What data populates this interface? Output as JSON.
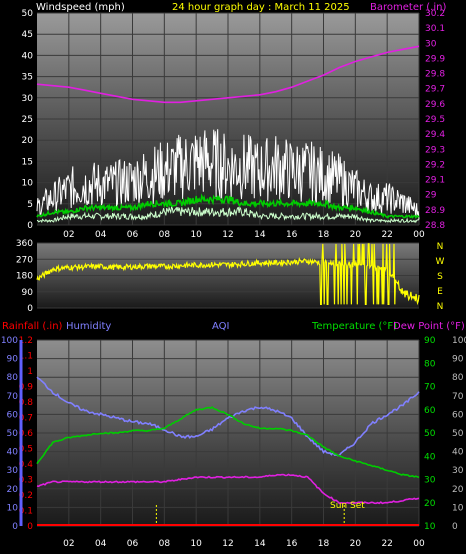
{
  "header": {
    "left_title": "Windspeed (mph)",
    "center_title": "24 hour graph day : March 11 2025",
    "right_title": "Barometer (.in)"
  },
  "colors": {
    "wind_gust": "#ffffff",
    "wind_avg": "#00cc00",
    "wind_low": "#ccffcc",
    "barometer": "#e020e0",
    "wind_dir": "#ffff00",
    "humidity": "#8080ff",
    "temperature": "#00cc00",
    "dewpoint": "#e020e0",
    "rainfall": "#ff0000",
    "aqi": "#8080ff",
    "compass": "#ffff00",
    "sunset": "#ffff00"
  },
  "chart_data": [
    {
      "type": "line",
      "x_ticks": [
        "02",
        "04",
        "06",
        "08",
        "10",
        "12",
        "14",
        "16",
        "18",
        "20",
        "22",
        "00"
      ],
      "y_left_label": "Windspeed (mph)",
      "y_left_ticks": [
        0,
        5,
        10,
        15,
        20,
        25,
        30,
        35,
        40,
        45,
        50
      ],
      "y_left_range": [
        0,
        50
      ],
      "y_right_label": "Barometer (.in)",
      "y_right_ticks": [
        "28.8",
        "28.9",
        "29",
        "29.1",
        "29.2",
        "29.3",
        "29.4",
        "29.5",
        "29.6",
        "29.7",
        "29.8",
        "29.9",
        "30",
        "30.1",
        "30.2"
      ],
      "y_right_range": [
        28.8,
        30.2
      ],
      "x_hours": [
        0,
        1,
        2,
        3,
        4,
        5,
        6,
        7,
        8,
        9,
        10,
        11,
        12,
        13,
        14,
        15,
        16,
        17,
        18,
        19,
        20,
        21,
        22,
        23,
        24
      ],
      "series": [
        {
          "name": "Barometer",
          "axis": "right",
          "values": [
            29.73,
            29.72,
            29.71,
            29.69,
            29.67,
            29.65,
            29.63,
            29.62,
            29.61,
            29.61,
            29.62,
            29.63,
            29.64,
            29.65,
            29.66,
            29.68,
            29.71,
            29.75,
            29.79,
            29.84,
            29.88,
            29.91,
            29.94,
            29.96,
            29.98
          ]
        },
        {
          "name": "Gust",
          "axis": "left",
          "values": [
            4,
            6,
            8,
            9,
            9,
            9,
            10,
            11,
            12,
            13,
            14,
            14,
            13,
            13,
            12,
            13,
            12,
            12,
            11,
            10,
            8,
            6,
            6,
            5,
            3
          ]
        },
        {
          "name": "Average",
          "axis": "left",
          "values": [
            2,
            3,
            3,
            4,
            4,
            4,
            4,
            5,
            5,
            5,
            6,
            6,
            6,
            5,
            5,
            5,
            5,
            5,
            5,
            4,
            4,
            3,
            2,
            2,
            2
          ]
        },
        {
          "name": "Low",
          "axis": "left",
          "values": [
            1,
            1,
            2,
            2,
            2,
            2,
            2,
            2,
            3,
            3,
            3,
            3,
            3,
            3,
            2,
            2,
            2,
            2,
            2,
            2,
            2,
            1,
            1,
            1,
            1
          ]
        }
      ]
    },
    {
      "type": "line",
      "x_ticks": [
        "02",
        "04",
        "06",
        "08",
        "10",
        "12",
        "14",
        "16",
        "18",
        "20",
        "22",
        "00"
      ],
      "y_ticks": [
        0,
        90,
        180,
        270,
        360
      ],
      "y_range": [
        0,
        360
      ],
      "compass_labels": [
        "N",
        "W",
        "S",
        "E",
        "N"
      ],
      "series": [
        {
          "name": "Wind Direction",
          "x_hours": [
            0,
            1,
            2,
            3,
            4,
            5,
            6,
            7,
            8,
            9,
            10,
            11,
            12,
            13,
            14,
            15,
            16,
            17,
            18,
            19,
            20,
            21,
            22,
            23,
            24
          ],
          "values": [
            160,
            215,
            225,
            228,
            230,
            225,
            228,
            232,
            230,
            235,
            238,
            240,
            240,
            245,
            250,
            250,
            255,
            260,
            250,
            245,
            240,
            230,
            220,
            80,
            50
          ]
        }
      ]
    },
    {
      "type": "line",
      "headers": {
        "rainfall": "Rainfall (.in)",
        "humidity": "Humidity",
        "aqi": "AQI",
        "temperature": "Temperature (°F)",
        "dewpoint": "Dew Point (°F)"
      },
      "x_ticks": [
        "02",
        "04",
        "06",
        "08",
        "10",
        "12",
        "14",
        "16",
        "18",
        "20",
        "22",
        "00"
      ],
      "y_humidity_ticks": [
        0,
        10,
        20,
        30,
        40,
        50,
        60,
        70,
        80,
        90,
        100
      ],
      "y_rain_ticks": [
        "0",
        "0.1",
        "0.2",
        "0.3",
        "0.4",
        "0.5",
        "0.6",
        "0.7",
        "0.8",
        "0.9",
        "1",
        "1.1",
        "1.2"
      ],
      "y_temp_ticks": [
        10,
        20,
        30,
        40,
        50,
        60,
        70,
        80,
        90
      ],
      "y_right_outer_ticks": [
        0,
        10,
        20,
        30,
        40,
        50,
        60,
        70,
        80,
        90,
        100
      ],
      "annotation": "Sun Set",
      "x_hours": [
        0,
        1,
        2,
        3,
        4,
        5,
        6,
        7,
        8,
        9,
        10,
        11,
        12,
        13,
        14,
        15,
        16,
        17,
        18,
        19,
        20,
        21,
        22,
        23,
        24
      ],
      "series": [
        {
          "name": "Humidity",
          "axis": "humidity",
          "values": [
            80,
            72,
            66,
            62,
            60,
            58,
            56,
            55,
            52,
            48,
            48,
            52,
            58,
            62,
            64,
            62,
            58,
            48,
            40,
            38,
            45,
            55,
            60,
            65,
            72
          ]
        },
        {
          "name": "Temperature",
          "axis": "temp",
          "values": [
            37,
            46,
            48,
            49,
            50,
            50,
            51,
            51,
            52,
            56,
            60,
            61,
            58,
            54,
            52,
            52,
            51,
            49,
            44,
            40,
            38,
            36,
            34,
            32,
            31
          ]
        },
        {
          "name": "Dew Point",
          "axis": "temp",
          "values": [
            27,
            29,
            29,
            29,
            29,
            29,
            29,
            29,
            29,
            30,
            31,
            31,
            31,
            31,
            31,
            32,
            32,
            31,
            24,
            20,
            20,
            20,
            20,
            21,
            22
          ]
        },
        {
          "name": "Rainfall",
          "axis": "rain",
          "values": [
            0,
            0,
            0,
            0,
            0,
            0,
            0,
            0,
            0,
            0,
            0,
            0,
            0,
            0,
            0,
            0,
            0,
            0,
            0,
            0,
            0,
            0,
            0,
            0,
            0
          ]
        }
      ]
    }
  ]
}
